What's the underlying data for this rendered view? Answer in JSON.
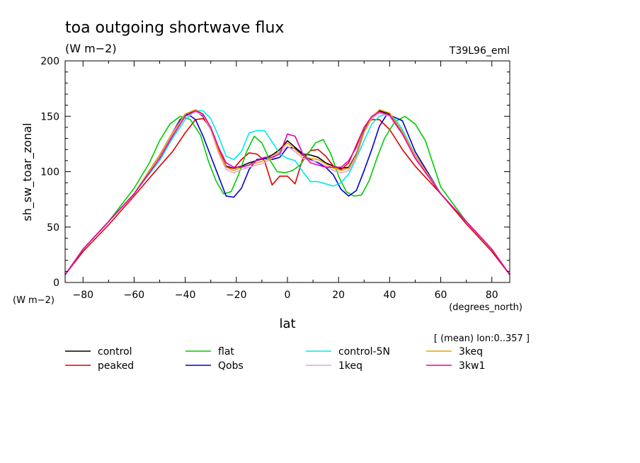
{
  "title": "toa outgoing shortwave flux",
  "subtitle": "(W m−2)",
  "run_label": "T39L96_eml",
  "y_unit_note": "(W m−2)",
  "x_unit_note": "(degrees_north)",
  "mean_note": "[ (mean) lon:0..357 ]",
  "chart_data": {
    "type": "line",
    "xlabel": "lat",
    "ylabel": "sh_sw_toar_zonal",
    "xlim": [
      -87,
      87
    ],
    "ylim": [
      0,
      200
    ],
    "x_ticks": [
      -80,
      -60,
      -40,
      -20,
      0,
      20,
      40,
      60,
      80
    ],
    "y_ticks": [
      0,
      50,
      100,
      150,
      200
    ],
    "x_tick_labels": [
      "−80",
      "−60",
      "−40",
      "−20",
      "0",
      "20",
      "40",
      "60",
      "80"
    ],
    "y_tick_labels": [
      "0",
      "50",
      "100",
      "150",
      "200"
    ],
    "grid": false,
    "legend_position": "bottom",
    "series": [
      {
        "name": "control",
        "color": "#000000",
        "x": [
          -87,
          -80,
          -70,
          -60,
          -50,
          -45,
          -40,
          -36,
          -33,
          -30,
          -27,
          -24,
          -21,
          -18,
          -15,
          -12,
          -9,
          -6,
          -3,
          0,
          3,
          6,
          9,
          12,
          15,
          18,
          21,
          24,
          27,
          30,
          33,
          36,
          40,
          45,
          50,
          60,
          70,
          80,
          87
        ],
        "y": [
          7,
          30,
          55,
          80,
          115,
          135,
          152,
          155,
          150,
          138,
          120,
          105,
          103,
          105,
          108,
          110,
          112,
          115,
          120,
          128,
          122,
          116,
          115,
          113,
          108,
          105,
          103,
          104,
          116,
          137,
          149,
          155,
          152,
          136,
          115,
          80,
          55,
          30,
          7
        ]
      },
      {
        "name": "peaked",
        "color": "#e00000",
        "x": [
          -87,
          -80,
          -70,
          -60,
          -50,
          -45,
          -40,
          -36,
          -33,
          -30,
          -27,
          -24,
          -21,
          -18,
          -15,
          -12,
          -9,
          -6,
          -3,
          0,
          3,
          6,
          9,
          12,
          15,
          18,
          21,
          24,
          27,
          30,
          33,
          36,
          40,
          45,
          50,
          60,
          70,
          80,
          87
        ],
        "y": [
          7,
          28,
          52,
          78,
          105,
          118,
          135,
          147,
          148,
          140,
          122,
          104,
          103,
          111,
          117,
          116,
          110,
          88,
          96,
          96,
          89,
          112,
          119,
          120,
          114,
          105,
          102,
          108,
          124,
          140,
          147,
          147,
          138,
          120,
          105,
          80,
          53,
          28,
          7
        ]
      },
      {
        "name": "flat",
        "color": "#00cc00",
        "x": [
          -87,
          -80,
          -70,
          -60,
          -54,
          -50,
          -46,
          -42,
          -38,
          -34,
          -31,
          -28,
          -25,
          -22,
          -19,
          -16,
          -13,
          -10,
          -7,
          -4,
          -1,
          2,
          5,
          8,
          11,
          14,
          17,
          20,
          23,
          26,
          29,
          32,
          35,
          38,
          42,
          46,
          50,
          54,
          60,
          70,
          80,
          87
        ],
        "y": [
          7,
          30,
          55,
          85,
          108,
          128,
          143,
          150,
          147,
          133,
          110,
          92,
          80,
          82,
          98,
          118,
          132,
          126,
          111,
          100,
          99,
          101,
          106,
          116,
          126,
          129,
          116,
          96,
          82,
          78,
          79,
          92,
          112,
          130,
          145,
          150,
          143,
          128,
          86,
          55,
          30,
          7
        ]
      },
      {
        "name": "Qobs",
        "color": "#0000cc",
        "x": [
          -87,
          -80,
          -70,
          -60,
          -50,
          -45,
          -42,
          -39,
          -36,
          -33,
          -30,
          -27,
          -24,
          -21,
          -18,
          -15,
          -12,
          -9,
          -6,
          -3,
          0,
          3,
          6,
          9,
          12,
          15,
          18,
          21,
          24,
          27,
          30,
          33,
          36,
          39,
          42,
          45,
          50,
          60,
          70,
          80,
          87
        ],
        "y": [
          7,
          30,
          55,
          80,
          113,
          135,
          147,
          152,
          147,
          132,
          114,
          96,
          78,
          77,
          85,
          102,
          111,
          112,
          111,
          113,
          122,
          121,
          115,
          111,
          108,
          104,
          97,
          84,
          78,
          83,
          101,
          120,
          141,
          152,
          149,
          146,
          118,
          80,
          55,
          30,
          7
        ]
      },
      {
        "name": "control-5N",
        "color": "#00e8e8",
        "x": [
          -87,
          -80,
          -70,
          -60,
          -50,
          -45,
          -40,
          -36,
          -33,
          -30,
          -27,
          -24,
          -21,
          -18,
          -15,
          -12,
          -9,
          -6,
          -3,
          0,
          3,
          6,
          9,
          12,
          15,
          18,
          21,
          24,
          27,
          30,
          33,
          36,
          39,
          42,
          45,
          50,
          60,
          70,
          80,
          87
        ],
        "y": [
          7,
          30,
          55,
          80,
          110,
          130,
          147,
          155,
          155,
          148,
          132,
          114,
          111,
          118,
          135,
          137,
          137,
          127,
          116,
          112,
          110,
          100,
          91,
          91,
          89,
          87,
          90,
          98,
          112,
          128,
          143,
          150,
          152,
          148,
          138,
          115,
          80,
          55,
          30,
          7
        ]
      },
      {
        "name": "1keq",
        "color": "#e8a0e0",
        "x": [
          -87,
          -80,
          -70,
          -60,
          -50,
          -45,
          -40,
          -36,
          -33,
          -30,
          -27,
          -24,
          -21,
          -18,
          -15,
          -12,
          -9,
          -6,
          -3,
          0,
          3,
          6,
          9,
          12,
          15,
          18,
          21,
          24,
          27,
          30,
          33,
          36,
          40,
          45,
          50,
          60,
          70,
          80,
          87
        ],
        "y": [
          7,
          30,
          55,
          80,
          113,
          133,
          150,
          154,
          151,
          138,
          117,
          102,
          99,
          102,
          104,
          106,
          108,
          112,
          117,
          123,
          118,
          112,
          110,
          109,
          105,
          101,
          99,
          101,
          113,
          135,
          148,
          153,
          150,
          134,
          113,
          80,
          55,
          30,
          7
        ]
      },
      {
        "name": "3keq",
        "color": "#f0a000",
        "x": [
          -87,
          -80,
          -70,
          -60,
          -50,
          -45,
          -40,
          -36,
          -33,
          -30,
          -27,
          -24,
          -21,
          -18,
          -15,
          -12,
          -9,
          -6,
          -3,
          0,
          3,
          6,
          9,
          12,
          15,
          18,
          21,
          24,
          27,
          30,
          33,
          36,
          40,
          45,
          50,
          60,
          70,
          80,
          87
        ],
        "y": [
          7,
          30,
          55,
          80,
          115,
          135,
          152,
          156,
          152,
          139,
          119,
          104,
          101,
          104,
          106,
          108,
          110,
          113,
          119,
          126,
          120,
          114,
          112,
          111,
          107,
          103,
          101,
          103,
          115,
          136,
          149,
          156,
          153,
          136,
          115,
          80,
          55,
          30,
          7
        ]
      },
      {
        "name": "3kw1",
        "color": "#e800b0",
        "x": [
          -87,
          -80,
          -70,
          -60,
          -50,
          -45,
          -40,
          -36,
          -33,
          -30,
          -27,
          -24,
          -21,
          -18,
          -15,
          -12,
          -9,
          -6,
          -3,
          0,
          3,
          6,
          9,
          12,
          15,
          18,
          21,
          24,
          27,
          30,
          33,
          36,
          40,
          45,
          50,
          60,
          70,
          80,
          87
        ],
        "y": [
          7,
          30,
          55,
          80,
          112,
          132,
          150,
          155,
          152,
          140,
          122,
          108,
          104,
          104,
          106,
          110,
          113,
          113,
          116,
          134,
          132,
          116,
          108,
          106,
          104,
          104,
          104,
          110,
          122,
          140,
          150,
          154,
          151,
          134,
          112,
          80,
          55,
          30,
          7
        ]
      }
    ]
  }
}
